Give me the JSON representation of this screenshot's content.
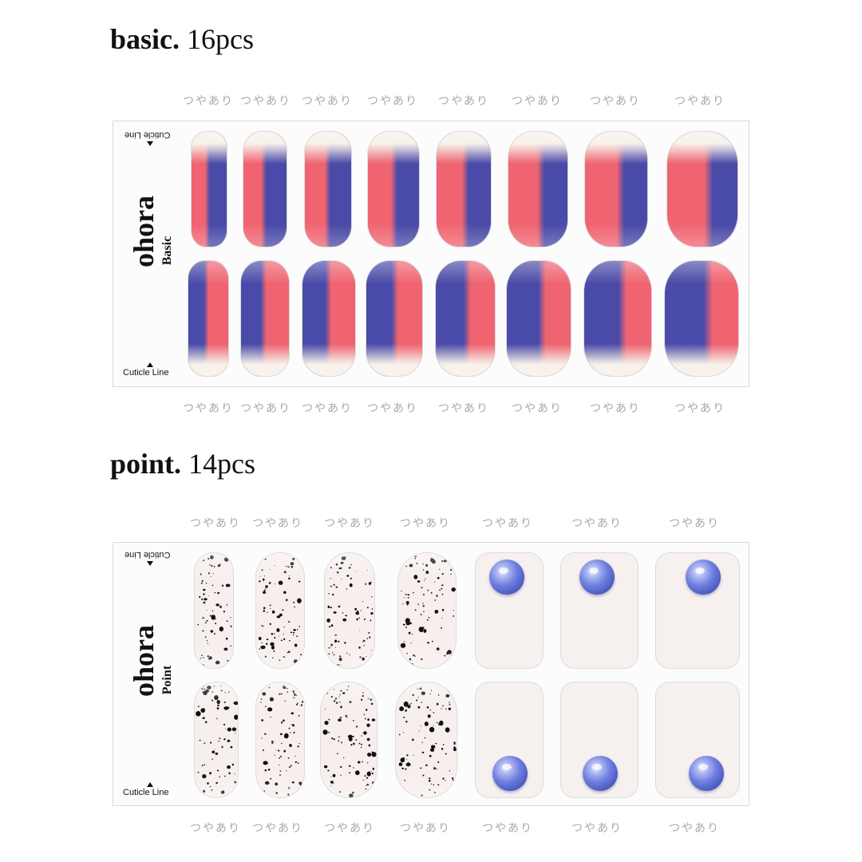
{
  "basic": {
    "title_bold": "basic.",
    "title_count": "16pcs",
    "gloss_labels": [
      "つやあり",
      "つやあり",
      "つやあり",
      "つやあり",
      "つやあり",
      "つやあり",
      "つやあり",
      "つやあり"
    ],
    "brand": "ohora",
    "sub": "Basic",
    "cuticle_label": "Cuticle Line",
    "colors": {
      "red": "#ef6470",
      "blue": "#4a4aa8",
      "cream": "#f6efe8"
    }
  },
  "point": {
    "title_bold": "point.",
    "title_count": "14pcs",
    "gloss_labels": [
      "つやあり",
      "つやあり",
      "つやあり",
      "つやあり",
      "つやあり",
      "つやあり",
      "つやあり"
    ],
    "brand": "ohora",
    "sub": "Point",
    "cuticle_label": "Cuticle Line",
    "colors": {
      "base": "#f7efee",
      "speck": "#111111",
      "gem": "#5c6bd6"
    }
  }
}
